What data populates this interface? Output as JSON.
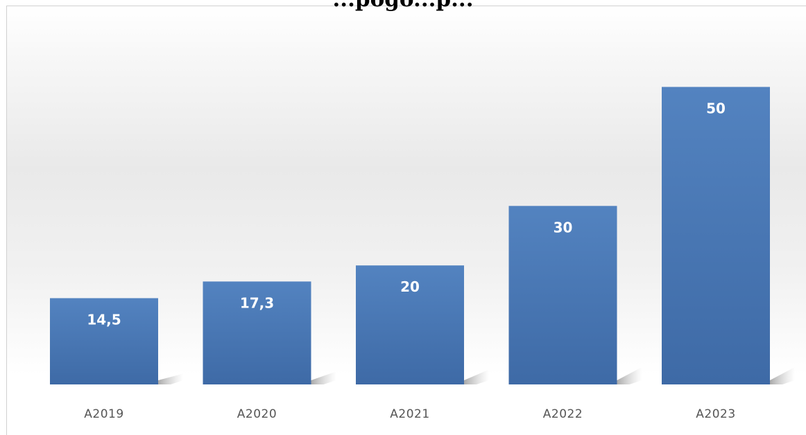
{
  "chart_data": {
    "type": "bar",
    "title": "...pogo...p...",
    "categories": [
      "A2019",
      "A2020",
      "A2021",
      "A2022",
      "A2023"
    ],
    "values": [
      14.5,
      17.3,
      20,
      30,
      50
    ],
    "value_labels": [
      "14,5",
      "17,3",
      "20",
      "30",
      "50"
    ],
    "xlabel": "",
    "ylabel": "",
    "grid": false,
    "legend": "none",
    "colors": {
      "bar_top": "#5383c0",
      "bar_bottom": "#3e6aa6",
      "value_label": "#ffffff",
      "tick_label": "#555555",
      "shadow": "#9a9a9a"
    }
  }
}
